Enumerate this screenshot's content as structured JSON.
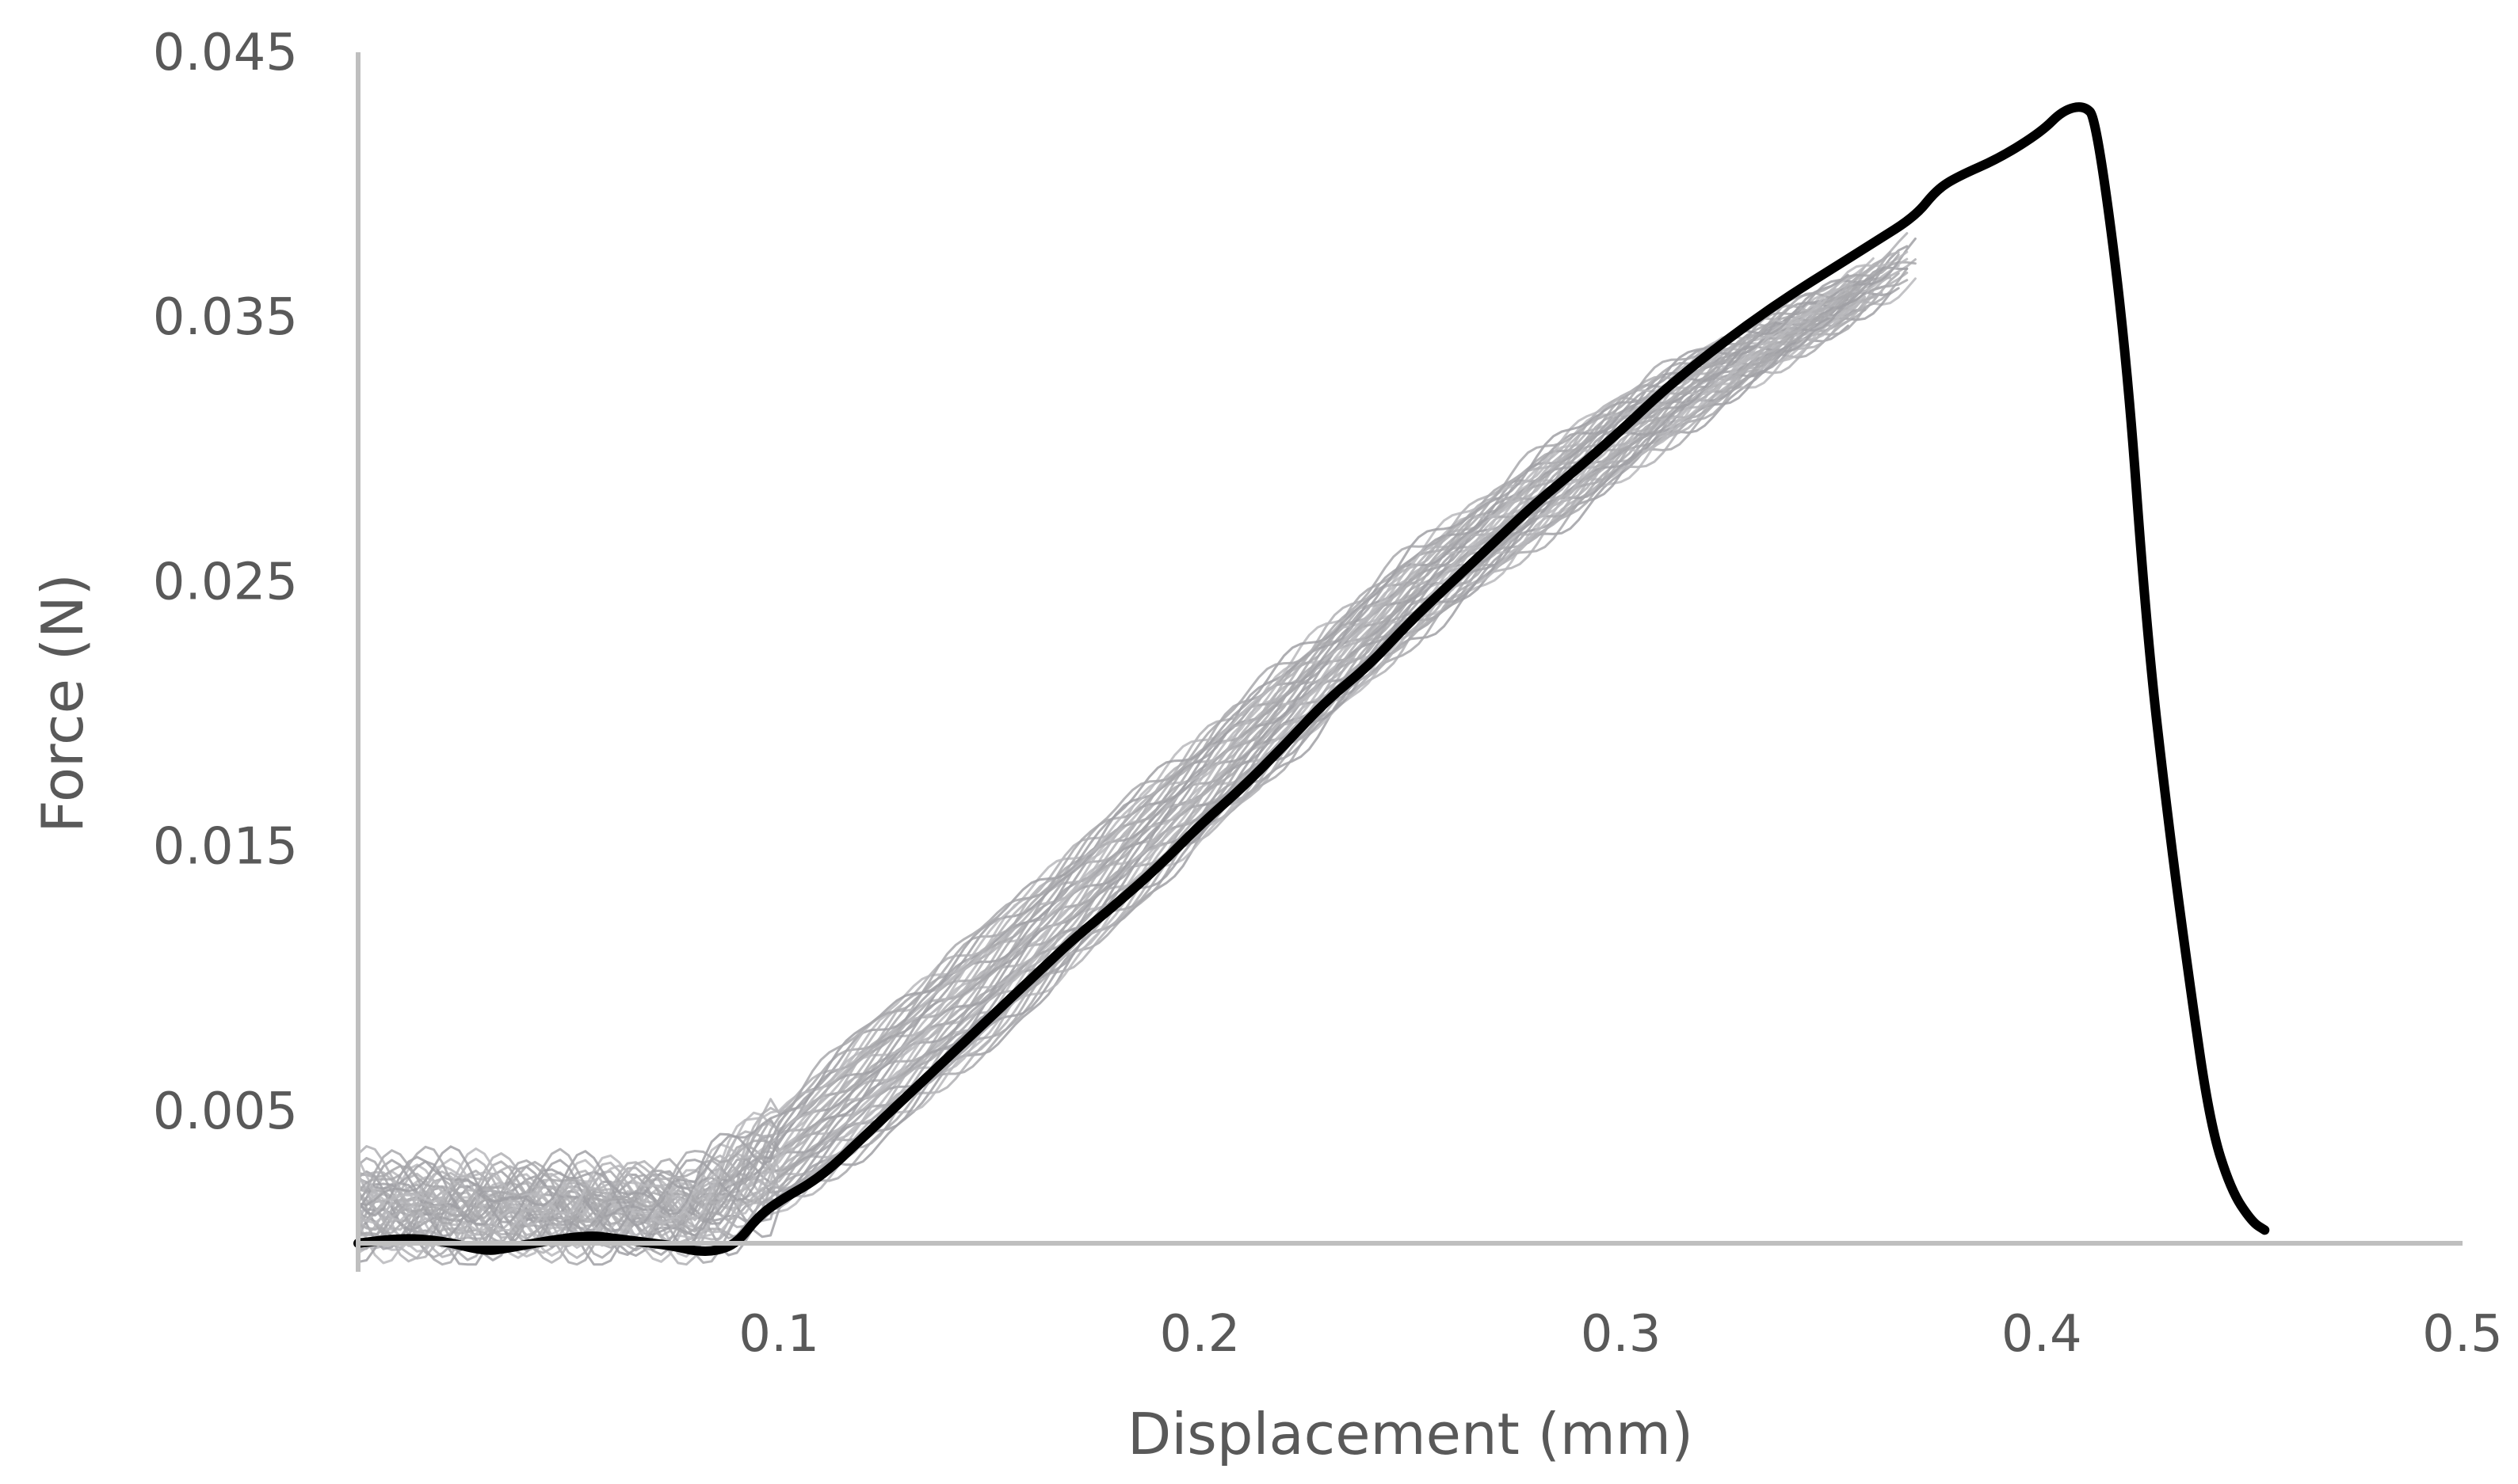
{
  "chart_data": {
    "type": "line",
    "title": "",
    "xlabel": "Displacement (mm)",
    "ylabel": "Force (N)",
    "xlim": [
      0,
      0.5
    ],
    "ylim": [
      -0.0008,
      0.045
    ],
    "x_ticks": [
      {
        "value": 0.1,
        "label": "0.1"
      },
      {
        "value": 0.2,
        "label": "0.2"
      },
      {
        "value": 0.3,
        "label": "0.3"
      },
      {
        "value": 0.4,
        "label": "0.4"
      },
      {
        "value": 0.5,
        "label": "0.5"
      }
    ],
    "y_ticks": [
      {
        "value": 0.005,
        "label": "0.005"
      },
      {
        "value": 0.015,
        "label": "0.015"
      },
      {
        "value": 0.025,
        "label": "0.025"
      },
      {
        "value": 0.035,
        "label": "0.035"
      },
      {
        "value": 0.045,
        "label": "0.045"
      }
    ],
    "grid": false,
    "legend": "none",
    "colors": {
      "main": "#000000",
      "band": "#a6a6a6",
      "axis": "#bfbfbf",
      "text": "#595959"
    },
    "series": [
      {
        "role": "main",
        "x": [
          0,
          0.01,
          0.02,
          0.03,
          0.035,
          0.045,
          0.055,
          0.06,
          0.065,
          0.075,
          0.08,
          0.085,
          0.09,
          0.095,
          0.1,
          0.11,
          0.12,
          0.13,
          0.14,
          0.15,
          0.16,
          0.17,
          0.18,
          0.19,
          0.2,
          0.21,
          0.22,
          0.23,
          0.24,
          0.25,
          0.26,
          0.27,
          0.28,
          0.29,
          0.3,
          0.31,
          0.32,
          0.33,
          0.34,
          0.35,
          0.36,
          0.37,
          0.375,
          0.38,
          0.39,
          0.4,
          0.405,
          0.41,
          0.413,
          0.42,
          0.425,
          0.43,
          0.435,
          0.44,
          0.445,
          0.45,
          0.453
        ],
        "y": [
          0,
          0.0002,
          0.0001,
          -0.0003,
          -0.0002,
          0.0001,
          0.0003,
          0.0002,
          0.0001,
          -0.0001,
          -0.0003,
          -0.0003,
          0,
          0.001,
          0.0016,
          0.0025,
          0.004,
          0.0055,
          0.007,
          0.0085,
          0.01,
          0.0115,
          0.0128,
          0.0142,
          0.0158,
          0.0172,
          0.0188,
          0.0205,
          0.0218,
          0.0235,
          0.025,
          0.0265,
          0.028,
          0.0293,
          0.0307,
          0.0322,
          0.0335,
          0.0347,
          0.0358,
          0.0368,
          0.0378,
          0.0388,
          0.0398,
          0.0403,
          0.041,
          0.042,
          0.0428,
          0.043,
          0.0425,
          0.034,
          0.023,
          0.016,
          0.01,
          0.0045,
          0.002,
          0.0008,
          0.0005
        ]
      },
      {
        "role": "band-upper",
        "x": [
          0,
          0.05,
          0.08,
          0.1,
          0.12,
          0.15,
          0.2,
          0.25,
          0.3,
          0.33,
          0.35,
          0.37
        ],
        "y": [
          0.0025,
          0.0022,
          0.0022,
          0.005,
          0.008,
          0.012,
          0.019,
          0.026,
          0.032,
          0.0345,
          0.036,
          0.038
        ]
      },
      {
        "role": "band-lower",
        "x": [
          0,
          0.05,
          0.08,
          0.1,
          0.12,
          0.15,
          0.2,
          0.25,
          0.3,
          0.33,
          0.35,
          0.37
        ],
        "y": [
          0.0002,
          0.0004,
          0.0004,
          0.0013,
          0.0035,
          0.0075,
          0.0152,
          0.0228,
          0.029,
          0.0325,
          0.0345,
          0.0365
        ]
      }
    ]
  }
}
